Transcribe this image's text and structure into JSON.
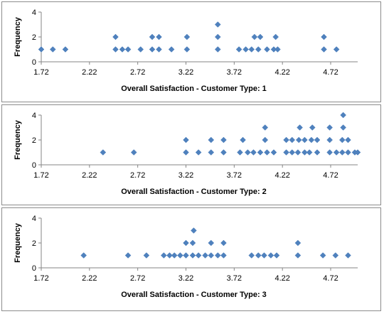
{
  "chart_data": [
    {
      "type": "scatter",
      "marker": "diamond",
      "color": "#4F81BD",
      "xlabel": "Overall Satisfaction - Customer Type: 1",
      "ylabel": "Frequency",
      "xlim": [
        1.72,
        5.0
      ],
      "ylim": [
        0,
        4
      ],
      "xticks": [
        "1.72",
        "2.22",
        "2.72",
        "3.22",
        "3.72",
        "4.22",
        "4.72"
      ],
      "yticks": [
        "0",
        "2",
        "4"
      ],
      "grid": false,
      "points": [
        [
          1.72,
          1
        ],
        [
          1.84,
          1
        ],
        [
          1.97,
          1
        ],
        [
          2.49,
          1
        ],
        [
          2.49,
          2
        ],
        [
          2.56,
          1
        ],
        [
          2.62,
          1
        ],
        [
          2.75,
          1
        ],
        [
          2.87,
          1
        ],
        [
          2.87,
          2
        ],
        [
          2.94,
          1
        ],
        [
          2.94,
          2
        ],
        [
          3.07,
          1
        ],
        [
          3.23,
          1
        ],
        [
          3.23,
          2
        ],
        [
          3.55,
          1
        ],
        [
          3.55,
          2
        ],
        [
          3.55,
          3
        ],
        [
          3.77,
          1
        ],
        [
          3.84,
          1
        ],
        [
          3.9,
          1
        ],
        [
          3.93,
          2
        ],
        [
          3.97,
          1
        ],
        [
          3.99,
          2
        ],
        [
          4.06,
          1
        ],
        [
          4.13,
          1
        ],
        [
          4.15,
          2
        ],
        [
          4.17,
          1
        ],
        [
          4.65,
          1
        ],
        [
          4.65,
          2
        ],
        [
          4.78,
          1
        ]
      ]
    },
    {
      "type": "scatter",
      "marker": "diamond",
      "color": "#4F81BD",
      "xlabel": "Overall Satisfaction - Customer Type: 2",
      "ylabel": "Frequency",
      "xlim": [
        1.72,
        5.0
      ],
      "ylim": [
        0,
        4
      ],
      "xticks": [
        "1.72",
        "2.22",
        "2.72",
        "3.22",
        "3.72",
        "4.22",
        "4.72"
      ],
      "yticks": [
        "0",
        "2",
        "4"
      ],
      "grid": false,
      "points": [
        [
          2.36,
          1
        ],
        [
          2.68,
          1
        ],
        [
          3.22,
          1
        ],
        [
          3.22,
          2
        ],
        [
          3.35,
          1
        ],
        [
          3.48,
          1
        ],
        [
          3.48,
          2
        ],
        [
          3.61,
          1
        ],
        [
          3.61,
          2
        ],
        [
          3.78,
          1
        ],
        [
          3.81,
          2
        ],
        [
          3.86,
          1
        ],
        [
          3.92,
          1
        ],
        [
          3.99,
          1
        ],
        [
          4.04,
          2
        ],
        [
          4.04,
          3
        ],
        [
          4.06,
          1
        ],
        [
          4.13,
          1
        ],
        [
          4.26,
          1
        ],
        [
          4.26,
          2
        ],
        [
          4.32,
          1
        ],
        [
          4.32,
          2
        ],
        [
          4.38,
          1
        ],
        [
          4.39,
          2
        ],
        [
          4.4,
          3
        ],
        [
          4.45,
          1
        ],
        [
          4.45,
          2
        ],
        [
          4.5,
          1
        ],
        [
          4.52,
          2
        ],
        [
          4.53,
          3
        ],
        [
          4.58,
          1
        ],
        [
          4.58,
          2
        ],
        [
          4.71,
          1
        ],
        [
          4.71,
          2
        ],
        [
          4.71,
          3
        ],
        [
          4.78,
          1
        ],
        [
          4.84,
          1
        ],
        [
          4.84,
          2
        ],
        [
          4.85,
          3
        ],
        [
          4.85,
          4
        ],
        [
          4.9,
          1
        ],
        [
          4.9,
          2
        ],
        [
          4.97,
          1
        ],
        [
          5.0,
          1
        ]
      ]
    },
    {
      "type": "scatter",
      "marker": "diamond",
      "color": "#4F81BD",
      "xlabel": "Overall Satisfaction - Customer Type: 3",
      "ylabel": "Frequency",
      "xlim": [
        1.72,
        5.0
      ],
      "ylim": [
        0,
        4
      ],
      "xticks": [
        "1.72",
        "2.22",
        "2.72",
        "3.22",
        "3.72",
        "4.22",
        "4.72"
      ],
      "yticks": [
        "0",
        "2",
        "4"
      ],
      "grid": false,
      "points": [
        [
          2.16,
          1
        ],
        [
          2.62,
          1
        ],
        [
          2.81,
          1
        ],
        [
          2.99,
          1
        ],
        [
          3.05,
          1
        ],
        [
          3.1,
          1
        ],
        [
          3.16,
          1
        ],
        [
          3.22,
          1
        ],
        [
          3.22,
          2
        ],
        [
          3.29,
          1
        ],
        [
          3.29,
          2
        ],
        [
          3.3,
          3
        ],
        [
          3.35,
          1
        ],
        [
          3.42,
          1
        ],
        [
          3.48,
          1
        ],
        [
          3.48,
          2
        ],
        [
          3.55,
          1
        ],
        [
          3.61,
          1
        ],
        [
          3.61,
          2
        ],
        [
          3.9,
          1
        ],
        [
          3.97,
          1
        ],
        [
          4.03,
          1
        ],
        [
          4.1,
          1
        ],
        [
          4.16,
          1
        ],
        [
          4.38,
          1
        ],
        [
          4.38,
          2
        ],
        [
          4.64,
          1
        ],
        [
          4.77,
          1
        ],
        [
          4.9,
          1
        ]
      ]
    }
  ]
}
